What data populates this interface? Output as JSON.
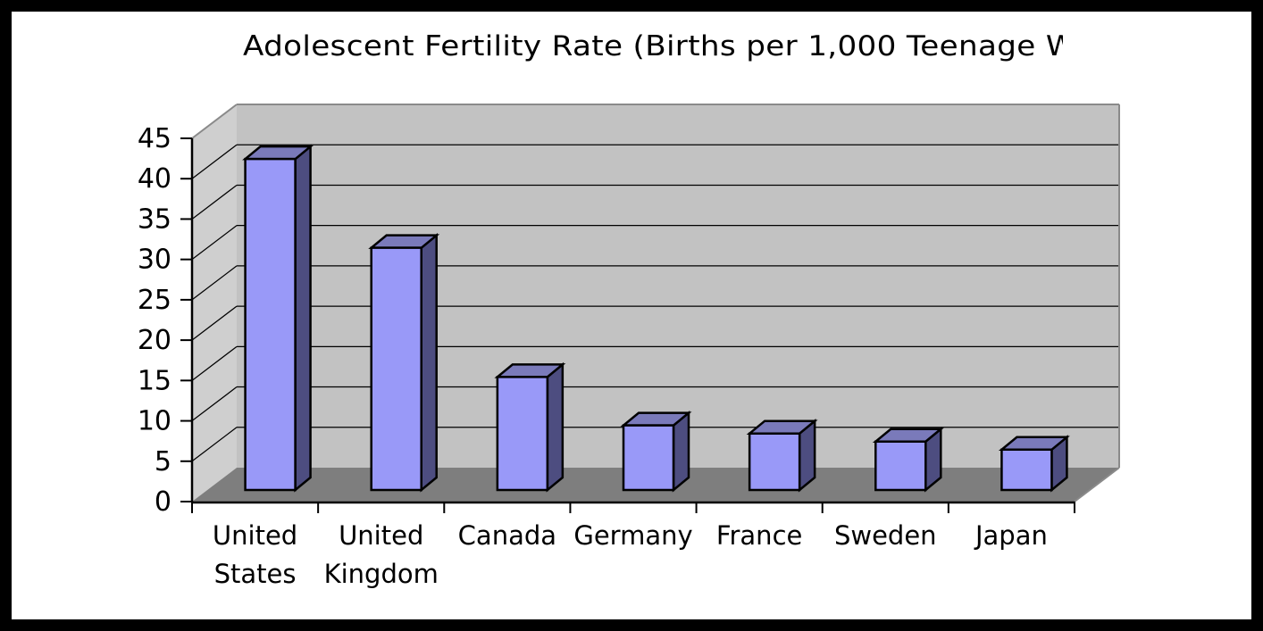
{
  "window": {
    "title_visible": "Adolescent Fertility Rate (Births per 1,000 Teenage W"
  },
  "chart_data": {
    "type": "bar",
    "style": "3d-column",
    "title": "Adolescent Fertility Rate (Births per 1,000 Teenage W",
    "title_clipped": true,
    "categories": [
      "United States",
      "United Kingdom",
      "Canada",
      "Germany",
      "France",
      "Sweden",
      "Japan"
    ],
    "category_label_lines": [
      [
        "United",
        "States"
      ],
      [
        "United",
        "Kingdom"
      ],
      [
        "Canada"
      ],
      [
        "Germany"
      ],
      [
        "France"
      ],
      [
        "Sweden"
      ],
      [
        "Japan"
      ]
    ],
    "values": [
      41,
      30,
      14,
      8,
      7,
      6,
      5
    ],
    "xlabel": "",
    "ylabel": "",
    "ylim": [
      0,
      45
    ],
    "ytick_step": 5,
    "yticks": [
      0,
      5,
      10,
      15,
      20,
      25,
      30,
      35,
      40,
      45
    ],
    "grid": true,
    "legend": "none",
    "colors": {
      "bar_front": "#9999F8",
      "bar_top": "#7A7ABA",
      "bar_side": "#4D4D80",
      "bar_outline": "#000000",
      "wall_back": "#C2C2C2",
      "wall_left": "#CFCFCF",
      "floor": "#7E7E7E",
      "gridline": "#000000",
      "axis": "#000000",
      "wall_edge": "#8A8A8A",
      "frame": "#000000",
      "background": "#FFFFFF"
    }
  }
}
